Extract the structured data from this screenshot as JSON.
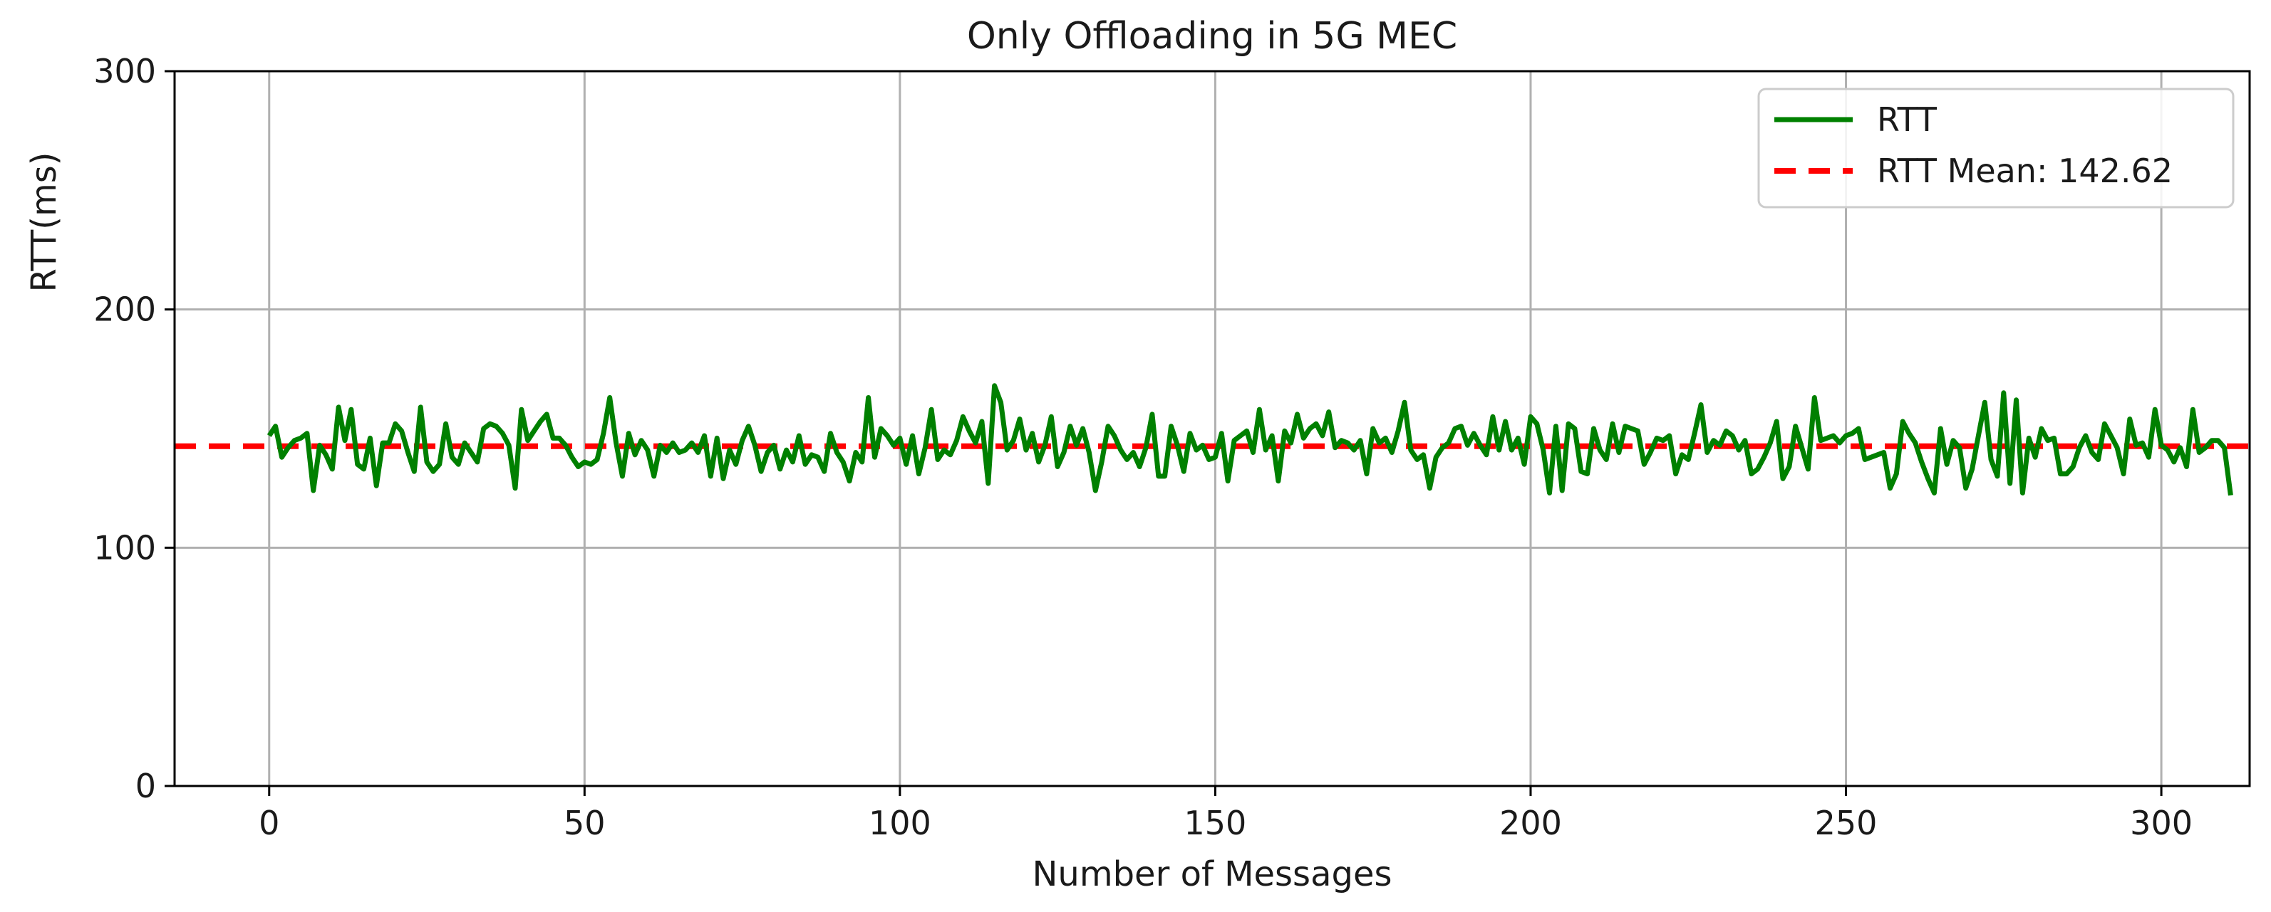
{
  "chart_data": {
    "type": "line",
    "title": "Only Offloading in 5G MEC",
    "xlabel": "Number of Messages",
    "ylabel": "RTT(ms)",
    "xlim": [
      -15,
      314
    ],
    "ylim": [
      0,
      300
    ],
    "xticks": [
      0,
      50,
      100,
      150,
      200,
      250,
      300
    ],
    "yticks": [
      0,
      100,
      200,
      300
    ],
    "grid": true,
    "legend_position": "top-right",
    "series": [
      {
        "name": "RTT",
        "color": "#008000",
        "style": "solid",
        "x_start": 0,
        "values": [
          147,
          151,
          138,
          142,
          145,
          146,
          148,
          124,
          143,
          139,
          133,
          159,
          145,
          158,
          135,
          133,
          146,
          126,
          144,
          144,
          152,
          149,
          140,
          132,
          159,
          136,
          132,
          135,
          152,
          138,
          135,
          144,
          140,
          136,
          150,
          152,
          151,
          148,
          143,
          125,
          158,
          145,
          149,
          153,
          156,
          146,
          146,
          143,
          138,
          134,
          136,
          135,
          137,
          148,
          163,
          144,
          130,
          148,
          139,
          145,
          141,
          130,
          143,
          140,
          144,
          140,
          141,
          144,
          140,
          147,
          130,
          146,
          129,
          141,
          135,
          145,
          151,
          143,
          132,
          140,
          143,
          133,
          141,
          136,
          147,
          135,
          139,
          138,
          132,
          148,
          140,
          136,
          128,
          140,
          136,
          163,
          138,
          150,
          147,
          143,
          146,
          135,
          147,
          131,
          142,
          158,
          137,
          141,
          139,
          145,
          155,
          149,
          144,
          153,
          127,
          168,
          161,
          141,
          145,
          154,
          141,
          148,
          136,
          143,
          155,
          134,
          140,
          151,
          143,
          150,
          140,
          124,
          136,
          151,
          147,
          141,
          137,
          140,
          134,
          142,
          156,
          130,
          130,
          151,
          143,
          132,
          148,
          141,
          143,
          137,
          138,
          148,
          128,
          145,
          147,
          149,
          140,
          158,
          141,
          147,
          128,
          149,
          144,
          156,
          146,
          150,
          152,
          147,
          157,
          142,
          145,
          144,
          141,
          145,
          131,
          150,
          144,
          146,
          140,
          149,
          161,
          141,
          137,
          139,
          125,
          138,
          142,
          144,
          150,
          151,
          143,
          148,
          143,
          139,
          155,
          141,
          153,
          141,
          146,
          135,
          155,
          152,
          141,
          123,
          151,
          124,
          152,
          150,
          132,
          131,
          150,
          141,
          137,
          152,
          140,
          151,
          150,
          149,
          135,
          140,
          146,
          145,
          147,
          131,
          139,
          137,
          148,
          160,
          140,
          145,
          143,
          149,
          147,
          141,
          145,
          131,
          133,
          138,
          144,
          153,
          129,
          134,
          151,
          142,
          133,
          163,
          145,
          146,
          147,
          144,
          147,
          148,
          150,
          137,
          138,
          139,
          140,
          125,
          131,
          153,
          148,
          144,
          136,
          129,
          123,
          150,
          135,
          145,
          142,
          125,
          133,
          147,
          161,
          137,
          130,
          165,
          127,
          162,
          123,
          146,
          138,
          150,
          145,
          146,
          131,
          131,
          134,
          142,
          147,
          140,
          137,
          152,
          147,
          142,
          131,
          154,
          143,
          144,
          138,
          158,
          143,
          141,
          136,
          142,
          134,
          158,
          140,
          142,
          145,
          145,
          142,
          122
        ]
      },
      {
        "name": "RTT Mean: 142.62",
        "color": "#ff0000",
        "style": "dashed",
        "constant": 142.62
      }
    ]
  }
}
